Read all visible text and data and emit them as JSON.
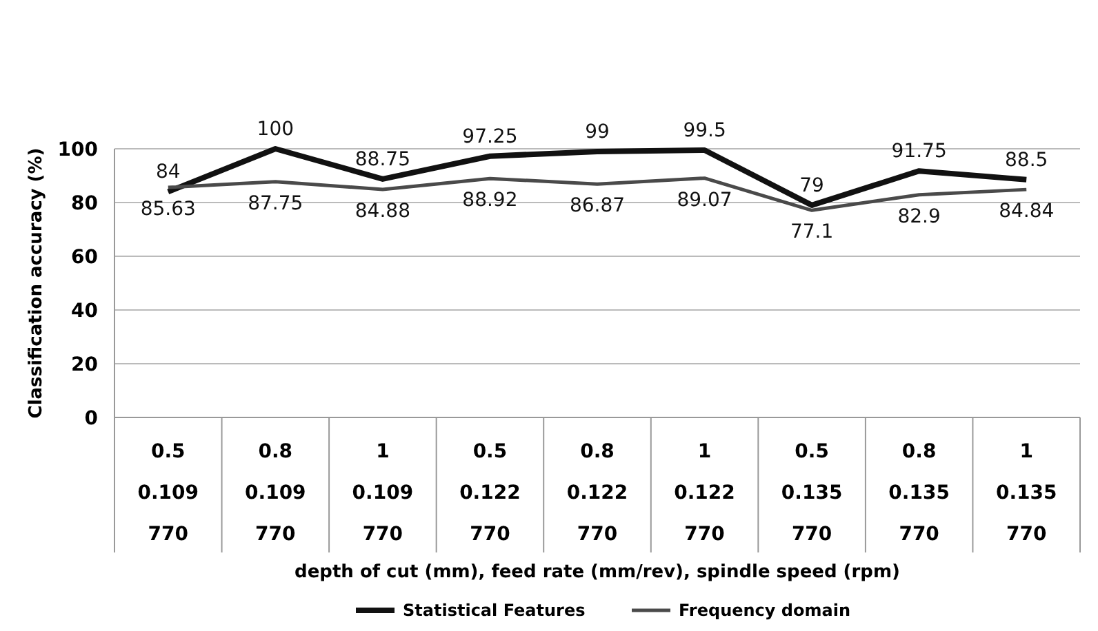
{
  "chart_data": {
    "type": "line",
    "ylabel": "Classification accuracy (%)",
    "xlabel": "depth of cut (mm), feed rate (mm/rev), spindle speed (rpm)",
    "categories": [
      "0.5\n0.109\n770",
      "0.8\n0.109\n770",
      "1\n0.109\n770",
      "0.5\n0.122\n770",
      "0.8\n0.122\n770",
      "1\n0.122\n770",
      "0.5\n0.135\n770",
      "0.8\n0.135\n770",
      "1\n0.135\n770"
    ],
    "series": [
      {
        "name": "Statistical Features",
        "color": "#111111",
        "values": [
          84,
          100,
          88.75,
          97.25,
          99,
          99.5,
          79,
          91.75,
          88.5
        ]
      },
      {
        "name": "Frequency domain",
        "color": "#4a4a4a",
        "values": [
          85.63,
          87.75,
          84.88,
          88.92,
          86.87,
          89.07,
          77.1,
          82.9,
          84.84
        ]
      }
    ],
    "ylim": [
      0,
      100
    ],
    "yticks": [
      0,
      20,
      40,
      60,
      80,
      100
    ],
    "grid": "y",
    "legend": "bottom",
    "data_labels": true,
    "marker": "none",
    "line_style": "solid"
  }
}
